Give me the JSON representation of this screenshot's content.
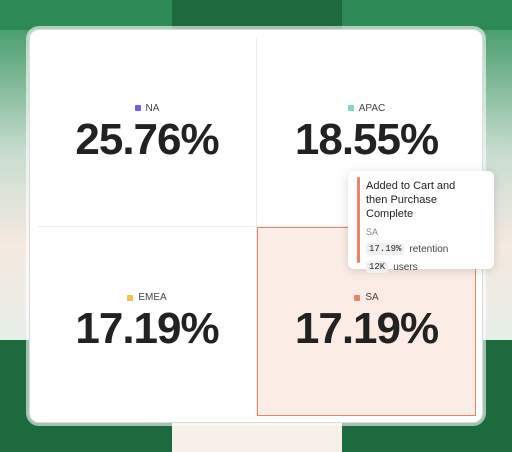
{
  "quadrants": [
    {
      "region": "NA",
      "value": "25.76%",
      "color": "#6f5cf1"
    },
    {
      "region": "APAC",
      "value": "18.55%",
      "color": "#7fd8c9"
    },
    {
      "region": "EMEA",
      "value": "17.19%",
      "color": "#f2c14e"
    },
    {
      "region": "SA",
      "value": "17.19%",
      "color": "#e8846a"
    }
  ],
  "tooltip": {
    "title_line1": "Added to Cart and",
    "title_line2": "then Purchase Complete",
    "segment": "SA",
    "retention_value": "17.19%",
    "retention_label": "retention",
    "users_value": "12K",
    "users_label": "users",
    "accent": "#e8846a"
  }
}
